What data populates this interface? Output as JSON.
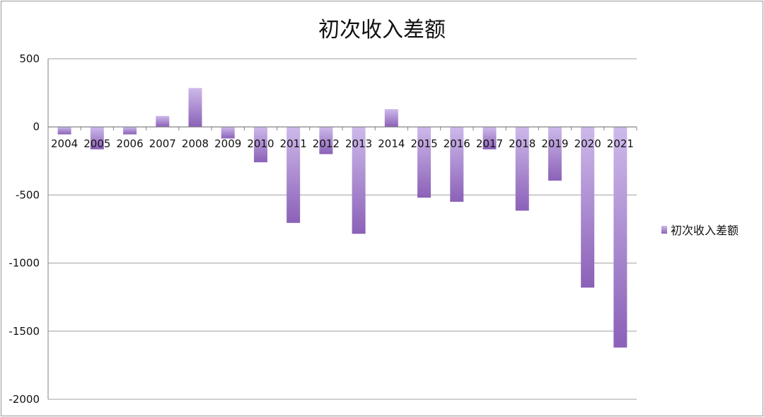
{
  "chart_data": {
    "type": "bar",
    "title": "初次收入差额",
    "categories": [
      "2004",
      "2005",
      "2006",
      "2007",
      "2008",
      "2009",
      "2010",
      "2011",
      "2012",
      "2013",
      "2014",
      "2015",
      "2016",
      "2017",
      "2018",
      "2019",
      "2020",
      "2021"
    ],
    "series": [
      {
        "name": "初次收入差额",
        "values": [
          -55,
          -165,
          -55,
          80,
          285,
          -85,
          -260,
          -705,
          -200,
          -785,
          130,
          -520,
          -550,
          -165,
          -615,
          -395,
          -1180,
          -1620
        ]
      }
    ],
    "ylim": [
      -2000,
      500
    ],
    "yticks": [
      500,
      0,
      -500,
      -1000,
      -1500,
      -2000
    ],
    "ytick_labels": [
      "500",
      "0",
      "-500",
      "-1000",
      "-1500",
      "-2000"
    ],
    "grid": true,
    "legend_position": "right",
    "colors": {
      "bar_light": "#cdb9ea",
      "bar_dark": "#8b61b8",
      "grid": "#a0a0a0",
      "axis": "#808080"
    }
  }
}
